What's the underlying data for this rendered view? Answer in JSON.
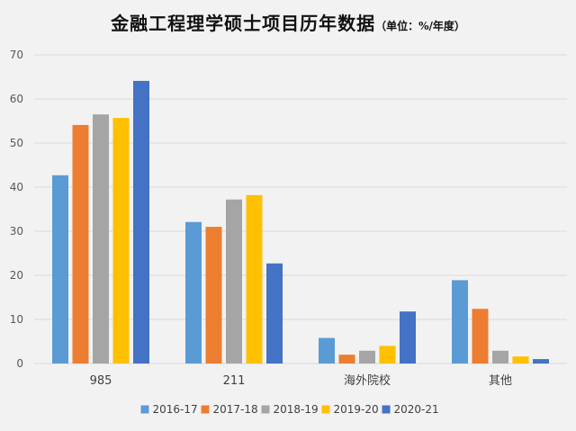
{
  "chart_data": {
    "type": "bar",
    "title": "金融工程理学硕士项目历年数据",
    "subtitle": "（单位：%/年度）",
    "categories": [
      "985",
      "211",
      "海外院校",
      "其他"
    ],
    "series": [
      {
        "name": "2016-17",
        "color": "#5b9bd5",
        "values": [
          42.7,
          32.1,
          5.8,
          18.9
        ]
      },
      {
        "name": "2017-18",
        "color": "#ed7d31",
        "values": [
          54.1,
          31.0,
          2.0,
          12.4
        ]
      },
      {
        "name": "2018-19",
        "color": "#a5a5a5",
        "values": [
          56.5,
          37.2,
          2.9,
          2.9
        ]
      },
      {
        "name": "2019-20",
        "color": "#ffc000",
        "values": [
          55.7,
          38.2,
          4.0,
          1.6
        ]
      },
      {
        "name": "2020-21",
        "color": "#4472c4",
        "values": [
          64.1,
          22.7,
          11.8,
          1.0
        ]
      }
    ],
    "ylim": [
      0,
      70
    ],
    "yticks": [
      "0",
      "10",
      "20",
      "30",
      "40",
      "50",
      "60",
      "70"
    ],
    "grid": true,
    "legend": "bottom"
  }
}
